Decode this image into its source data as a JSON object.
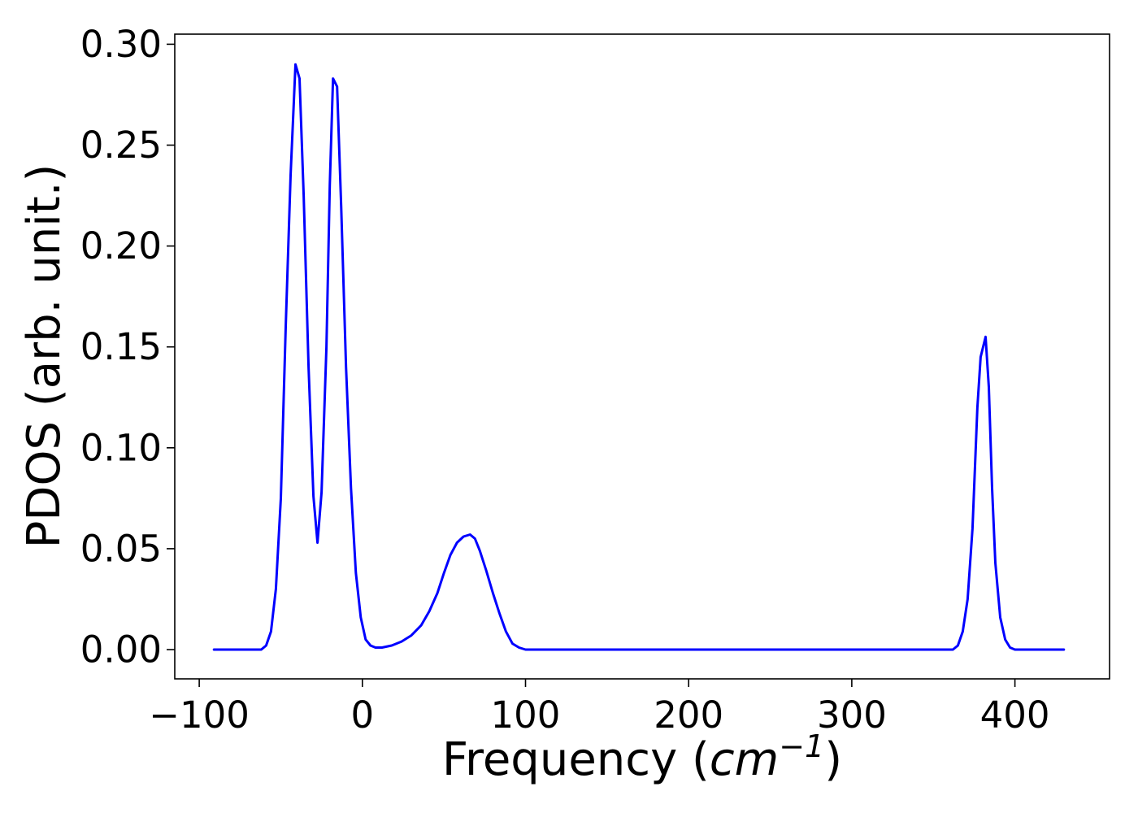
{
  "chart_data": {
    "type": "line",
    "title": "",
    "xlabel": {
      "prefix": "Frequency (",
      "math": "cm",
      "sup": "−1",
      "suffix": ")"
    },
    "ylabel": "PDOS (arb. unit.)",
    "xlim": [
      -115,
      458
    ],
    "ylim": [
      -0.0145,
      0.305
    ],
    "xticks": [
      -100,
      0,
      100,
      200,
      300,
      400
    ],
    "xtick_labels": [
      "−100",
      "0",
      "100",
      "200",
      "300",
      "400"
    ],
    "yticks": [
      0.0,
      0.05,
      0.1,
      0.15,
      0.2,
      0.25,
      0.3
    ],
    "ytick_labels": [
      "0.00",
      "0.05",
      "0.10",
      "0.15",
      "0.20",
      "0.25",
      "0.30"
    ],
    "grid": false,
    "colors": {
      "line": "#0000ff",
      "axes": "#000000"
    },
    "series": [
      {
        "values": [
          [
            -91,
            0.0
          ],
          [
            -62,
            0.0
          ],
          [
            -59,
            0.002
          ],
          [
            -56,
            0.009
          ],
          [
            -53,
            0.03
          ],
          [
            -50,
            0.075
          ],
          [
            -47,
            0.16
          ],
          [
            -44,
            0.235
          ],
          [
            -41,
            0.29
          ],
          [
            -38.5,
            0.283
          ],
          [
            -36,
            0.225
          ],
          [
            -33,
            0.14
          ],
          [
            -30,
            0.076
          ],
          [
            -27.5,
            0.053
          ],
          [
            -25,
            0.078
          ],
          [
            -22,
            0.15
          ],
          [
            -20,
            0.23
          ],
          [
            -18,
            0.283
          ],
          [
            -15.5,
            0.279
          ],
          [
            -13,
            0.22
          ],
          [
            -10,
            0.14
          ],
          [
            -7,
            0.08
          ],
          [
            -4,
            0.038
          ],
          [
            -1,
            0.016
          ],
          [
            2,
            0.005
          ],
          [
            5,
            0.002
          ],
          [
            8,
            0.001
          ],
          [
            12,
            0.001
          ],
          [
            18,
            0.002
          ],
          [
            24,
            0.004
          ],
          [
            30,
            0.007
          ],
          [
            36,
            0.012
          ],
          [
            41,
            0.019
          ],
          [
            46,
            0.028
          ],
          [
            50,
            0.038
          ],
          [
            54,
            0.047
          ],
          [
            58,
            0.053
          ],
          [
            62,
            0.056
          ],
          [
            66,
            0.057
          ],
          [
            69,
            0.055
          ],
          [
            72,
            0.049
          ],
          [
            76,
            0.039
          ],
          [
            80,
            0.028
          ],
          [
            84,
            0.018
          ],
          [
            88,
            0.009
          ],
          [
            92,
            0.003
          ],
          [
            96,
            0.001
          ],
          [
            100,
            0.0
          ],
          [
            120,
            0.0
          ],
          [
            362,
            0.0
          ],
          [
            365,
            0.002
          ],
          [
            368,
            0.009
          ],
          [
            371,
            0.025
          ],
          [
            374,
            0.06
          ],
          [
            377,
            0.12
          ],
          [
            379,
            0.145
          ],
          [
            382,
            0.155
          ],
          [
            384,
            0.13
          ],
          [
            386,
            0.08
          ],
          [
            388,
            0.043
          ],
          [
            391,
            0.016
          ],
          [
            394,
            0.005
          ],
          [
            397,
            0.001
          ],
          [
            400,
            0.0
          ],
          [
            430,
            0.0
          ]
        ]
      }
    ]
  }
}
